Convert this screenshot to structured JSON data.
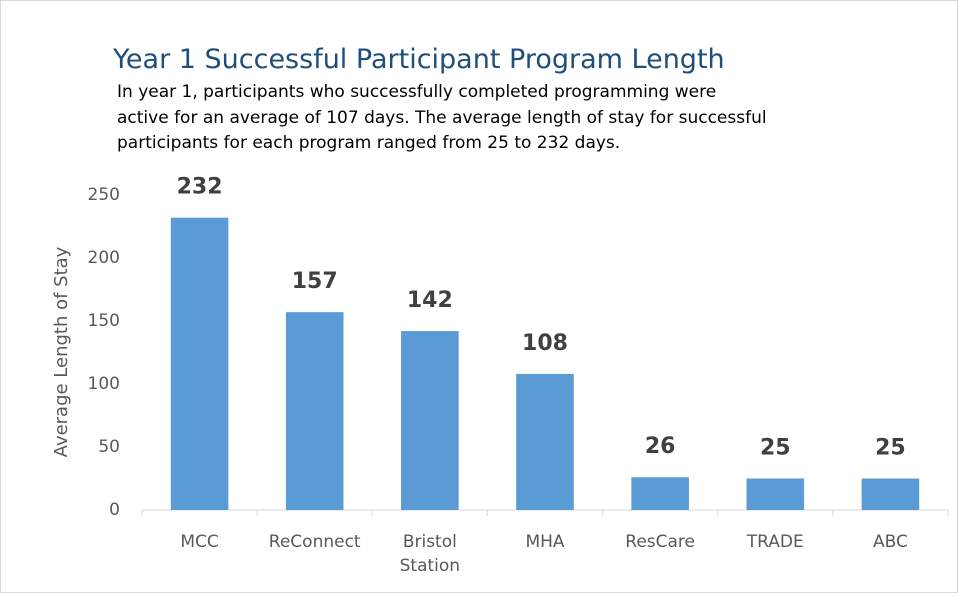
{
  "chart_data": {
    "type": "bar",
    "title": "Year 1 Successful Participant Program Length",
    "subtitle": "In year 1, participants who successfully completed programming were active for an average of 107 days. The average length of stay for successful participants for each program ranged from 25 to 232 days.",
    "ylabel": "Average Length of Stay",
    "categories": [
      "MCC",
      "ReConnect",
      "Bristol Station",
      "MHA",
      "ResCare",
      "TRADE",
      "ABC"
    ],
    "values": [
      232,
      157,
      142,
      108,
      26,
      25,
      25
    ],
    "color": "#5b9bd5",
    "ylim": [
      0,
      250
    ],
    "yticks": [
      0,
      50,
      100,
      150,
      200,
      250
    ],
    "grid": false
  }
}
